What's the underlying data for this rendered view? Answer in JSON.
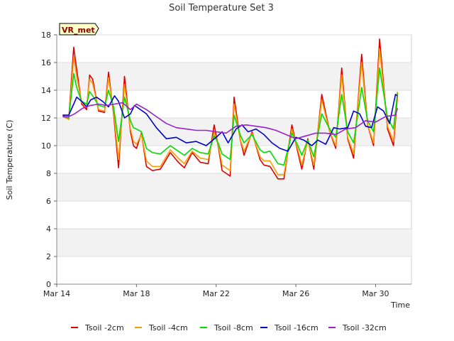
{
  "chart_data": {
    "type": "line",
    "title": "Soil Temperature Set 3",
    "xlabel": "Time",
    "ylabel": "Soil Temperature (C)",
    "badge": "VR_met",
    "xlim": [
      0,
      17.8
    ],
    "ylim": [
      0,
      18
    ],
    "grid": true,
    "legend_position": "bottom",
    "y_ticks": [
      0,
      2,
      4,
      6,
      8,
      10,
      12,
      14,
      16,
      18
    ],
    "x_ticks": [
      {
        "day": 0,
        "label": "Mar 14"
      },
      {
        "day": 4,
        "label": "Mar 18"
      },
      {
        "day": 8,
        "label": "Mar 22"
      },
      {
        "day": 12,
        "label": "Mar 26"
      },
      {
        "day": 16,
        "label": "Mar 30"
      }
    ],
    "series": [
      {
        "name": "Tsoil -2cm",
        "color": "#dd0000",
        "x": [
          0.3,
          0.6,
          0.85,
          1.0,
          1.25,
          1.5,
          1.65,
          1.8,
          2.1,
          2.4,
          2.6,
          2.85,
          3.1,
          3.4,
          3.7,
          3.85,
          4.0,
          4.25,
          4.5,
          4.8,
          5.2,
          5.7,
          6.1,
          6.4,
          6.8,
          7.2,
          7.6,
          7.9,
          8.1,
          8.3,
          8.7,
          8.9,
          9.2,
          9.4,
          9.8,
          10.2,
          10.4,
          10.7,
          11.1,
          11.4,
          11.8,
          12.1,
          12.3,
          12.6,
          12.9,
          13.3,
          13.7,
          14.0,
          14.3,
          14.6,
          14.9,
          15.3,
          15.6,
          15.9,
          16.2,
          16.6,
          16.9,
          17.1
        ],
        "y": [
          12.2,
          11.9,
          17.1,
          15.5,
          13.0,
          12.6,
          15.1,
          14.8,
          12.5,
          12.4,
          15.3,
          12.3,
          8.4,
          15.0,
          11.0,
          10.0,
          9.8,
          10.9,
          8.5,
          8.2,
          8.3,
          9.5,
          8.8,
          8.4,
          9.5,
          8.8,
          8.7,
          11.5,
          10.0,
          8.2,
          7.8,
          13.5,
          10.5,
          9.3,
          11.0,
          9.0,
          8.6,
          8.5,
          7.6,
          7.6,
          11.5,
          9.5,
          8.3,
          10.5,
          8.3,
          13.7,
          11.0,
          9.8,
          15.6,
          10.5,
          9.1,
          16.6,
          11.5,
          10.0,
          17.7,
          11.2,
          10.0,
          13.6
        ]
      },
      {
        "name": "Tsoil -4cm",
        "color": "#ff9900",
        "x": [
          0.3,
          0.6,
          0.85,
          1.0,
          1.25,
          1.5,
          1.65,
          1.8,
          2.1,
          2.4,
          2.6,
          2.85,
          3.1,
          3.4,
          3.7,
          3.85,
          4.0,
          4.25,
          4.5,
          4.8,
          5.2,
          5.7,
          6.1,
          6.4,
          6.8,
          7.2,
          7.6,
          7.9,
          8.1,
          8.3,
          8.7,
          8.9,
          9.2,
          9.4,
          9.8,
          10.2,
          10.4,
          10.7,
          11.1,
          11.4,
          11.8,
          12.1,
          12.3,
          12.6,
          12.9,
          13.3,
          13.7,
          14.0,
          14.3,
          14.6,
          14.9,
          15.3,
          15.6,
          15.9,
          16.2,
          16.6,
          16.9,
          17.1
        ],
        "y": [
          12.1,
          11.9,
          16.4,
          15.0,
          13.1,
          12.8,
          14.8,
          14.5,
          12.6,
          12.5,
          14.9,
          12.5,
          9.0,
          14.4,
          11.2,
          10.3,
          10.1,
          10.8,
          8.9,
          8.5,
          8.5,
          9.7,
          9.1,
          8.7,
          9.6,
          9.1,
          9.0,
          11.0,
          10.1,
          8.6,
          8.2,
          13.0,
          10.5,
          9.6,
          10.9,
          9.2,
          8.9,
          8.9,
          7.9,
          7.9,
          11.2,
          9.7,
          8.6,
          10.4,
          8.6,
          13.3,
          11.0,
          10.0,
          15.1,
          10.6,
          9.4,
          16.0,
          11.5,
          10.2,
          17.0,
          11.4,
          10.3,
          13.9
        ]
      },
      {
        "name": "Tsoil -8cm",
        "color": "#00dd00",
        "x": [
          0.3,
          0.6,
          0.85,
          1.0,
          1.25,
          1.5,
          1.65,
          1.8,
          2.1,
          2.4,
          2.6,
          2.85,
          3.1,
          3.4,
          3.7,
          3.85,
          4.0,
          4.25,
          4.5,
          4.8,
          5.2,
          5.7,
          6.1,
          6.4,
          6.8,
          7.2,
          7.6,
          7.9,
          8.1,
          8.3,
          8.7,
          8.9,
          9.2,
          9.4,
          9.8,
          10.2,
          10.4,
          10.7,
          11.1,
          11.4,
          11.8,
          12.1,
          12.3,
          12.6,
          12.9,
          13.3,
          13.7,
          14.0,
          14.3,
          14.6,
          14.9,
          15.3,
          15.6,
          15.9,
          16.2,
          16.6,
          16.9,
          17.1
        ],
        "y": [
          12.1,
          12.0,
          15.2,
          14.2,
          13.2,
          13.0,
          13.9,
          13.6,
          12.9,
          12.8,
          14.0,
          12.8,
          10.3,
          13.5,
          11.8,
          11.3,
          11.2,
          11.0,
          9.8,
          9.5,
          9.4,
          10.0,
          9.6,
          9.3,
          9.8,
          9.5,
          9.4,
          10.7,
          10.2,
          9.4,
          9.0,
          12.2,
          10.8,
          10.2,
          10.8,
          9.7,
          9.5,
          9.6,
          8.7,
          8.6,
          10.9,
          10.0,
          9.3,
          10.4,
          9.2,
          12.3,
          11.2,
          10.6,
          13.7,
          11.0,
          10.2,
          14.2,
          11.8,
          11.0,
          15.6,
          12.0,
          11.2,
          13.8
        ]
      },
      {
        "name": "Tsoil -16cm",
        "color": "#0000cc",
        "x": [
          0.3,
          0.6,
          0.85,
          1.0,
          1.25,
          1.5,
          1.7,
          2.0,
          2.3,
          2.6,
          2.9,
          3.1,
          3.4,
          3.7,
          3.9,
          4.1,
          4.5,
          5.0,
          5.5,
          6.0,
          6.5,
          7.0,
          7.5,
          8.0,
          8.3,
          8.6,
          9.0,
          9.3,
          9.6,
          10.0,
          10.4,
          10.8,
          11.2,
          11.6,
          12.0,
          12.4,
          12.8,
          13.1,
          13.5,
          13.9,
          14.2,
          14.6,
          14.9,
          15.2,
          15.5,
          15.8,
          16.1,
          16.4,
          16.7,
          17.0,
          17.1
        ],
        "y": [
          12.2,
          12.2,
          13.0,
          13.5,
          13.2,
          12.8,
          13.3,
          13.5,
          13.2,
          12.8,
          13.6,
          13.2,
          12.0,
          12.3,
          12.9,
          12.7,
          12.3,
          11.3,
          10.5,
          10.6,
          10.2,
          10.3,
          10.0,
          10.6,
          11.0,
          10.2,
          11.2,
          11.5,
          11.0,
          11.2,
          10.8,
          10.2,
          9.8,
          9.6,
          10.6,
          10.4,
          10.0,
          10.4,
          10.1,
          11.3,
          11.2,
          11.3,
          12.5,
          12.3,
          11.4,
          11.3,
          12.8,
          12.5,
          11.6,
          13.7,
          13.6
        ]
      },
      {
        "name": "Tsoil -32cm",
        "color": "#9922cc",
        "x": [
          0.3,
          0.6,
          0.9,
          1.3,
          1.7,
          2.1,
          2.5,
          2.9,
          3.3,
          3.7,
          4.0,
          4.5,
          5.0,
          5.5,
          6.0,
          6.5,
          7.0,
          7.5,
          8.0,
          8.5,
          9.0,
          9.5,
          10.0,
          10.5,
          11.0,
          11.5,
          12.0,
          12.5,
          13.0,
          13.5,
          14.0,
          14.5,
          15.0,
          15.5,
          16.0,
          16.5,
          17.0,
          17.1
        ],
        "y": [
          12.1,
          12.1,
          12.3,
          12.7,
          12.9,
          13.0,
          12.9,
          13.0,
          13.1,
          12.6,
          13.0,
          12.6,
          12.1,
          11.6,
          11.3,
          11.2,
          11.1,
          11.1,
          11.0,
          10.9,
          11.4,
          11.5,
          11.4,
          11.3,
          11.1,
          10.8,
          10.5,
          10.7,
          10.9,
          10.9,
          10.8,
          11.2,
          11.3,
          11.8,
          11.7,
          12.1,
          12.2,
          12.7
        ]
      }
    ]
  }
}
